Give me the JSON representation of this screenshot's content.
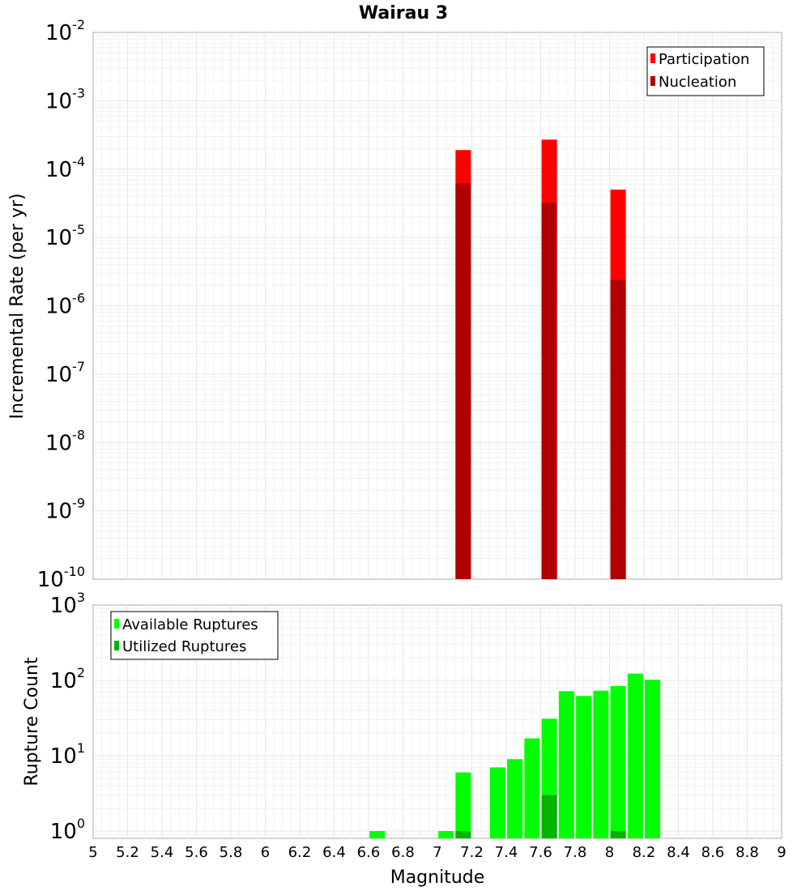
{
  "chart_data": [
    {
      "type": "bar",
      "title": "Wairau 3",
      "xlabel": "",
      "ylabel": "Incremental Rate (per yr)",
      "yscale": "log",
      "xlim": [
        5,
        9
      ],
      "ylim": [
        1e-10,
        0.01
      ],
      "ytick_exponents": [
        "-10",
        "-9",
        "-8",
        "-7",
        "-6",
        "-5",
        "-4",
        "-3",
        "-2"
      ],
      "legend_position": "top-right",
      "series": [
        {
          "name": "Participation",
          "color": "#ff0000",
          "points": [
            {
              "x": 7.15,
              "y": 0.00019
            },
            {
              "x": 7.65,
              "y": 0.00027
            },
            {
              "x": 8.05,
              "y": 5e-05
            }
          ]
        },
        {
          "name": "Nucleation",
          "color": "#b00000",
          "points": [
            {
              "x": 7.15,
              "y": 6.2e-05
            },
            {
              "x": 7.65,
              "y": 3.2e-05
            },
            {
              "x": 8.05,
              "y": 2.4e-06
            }
          ]
        }
      ]
    },
    {
      "type": "bar",
      "title": "",
      "xlabel": "Magnitude",
      "ylabel": "Rupture Count",
      "yscale": "log",
      "xlim": [
        5,
        9
      ],
      "ylim": [
        0.8,
        1000
      ],
      "ytick_exponents": [
        "0",
        "1",
        "2",
        "3"
      ],
      "xticks": [
        "5",
        "5.2",
        "5.4",
        "5.6",
        "5.8",
        "6",
        "6.2",
        "6.4",
        "6.6",
        "6.8",
        "7",
        "7.2",
        "7.4",
        "7.6",
        "7.8",
        "8",
        "8.2",
        "8.4",
        "8.6",
        "8.8",
        "9"
      ],
      "legend_position": "top-left",
      "series": [
        {
          "name": "Available Ruptures",
          "color": "#00ff00",
          "points": [
            {
              "x": 6.65,
              "y": 1
            },
            {
              "x": 7.05,
              "y": 1
            },
            {
              "x": 7.15,
              "y": 6
            },
            {
              "x": 7.35,
              "y": 7
            },
            {
              "x": 7.45,
              "y": 9
            },
            {
              "x": 7.55,
              "y": 17
            },
            {
              "x": 7.65,
              "y": 31
            },
            {
              "x": 7.75,
              "y": 72
            },
            {
              "x": 7.85,
              "y": 62
            },
            {
              "x": 7.95,
              "y": 73
            },
            {
              "x": 8.05,
              "y": 84
            },
            {
              "x": 8.15,
              "y": 123
            },
            {
              "x": 8.25,
              "y": 102
            }
          ]
        },
        {
          "name": "Utilized Ruptures",
          "color": "#00b400",
          "points": [
            {
              "x": 7.15,
              "y": 1
            },
            {
              "x": 7.65,
              "y": 3
            },
            {
              "x": 8.05,
              "y": 1
            }
          ]
        }
      ]
    }
  ]
}
